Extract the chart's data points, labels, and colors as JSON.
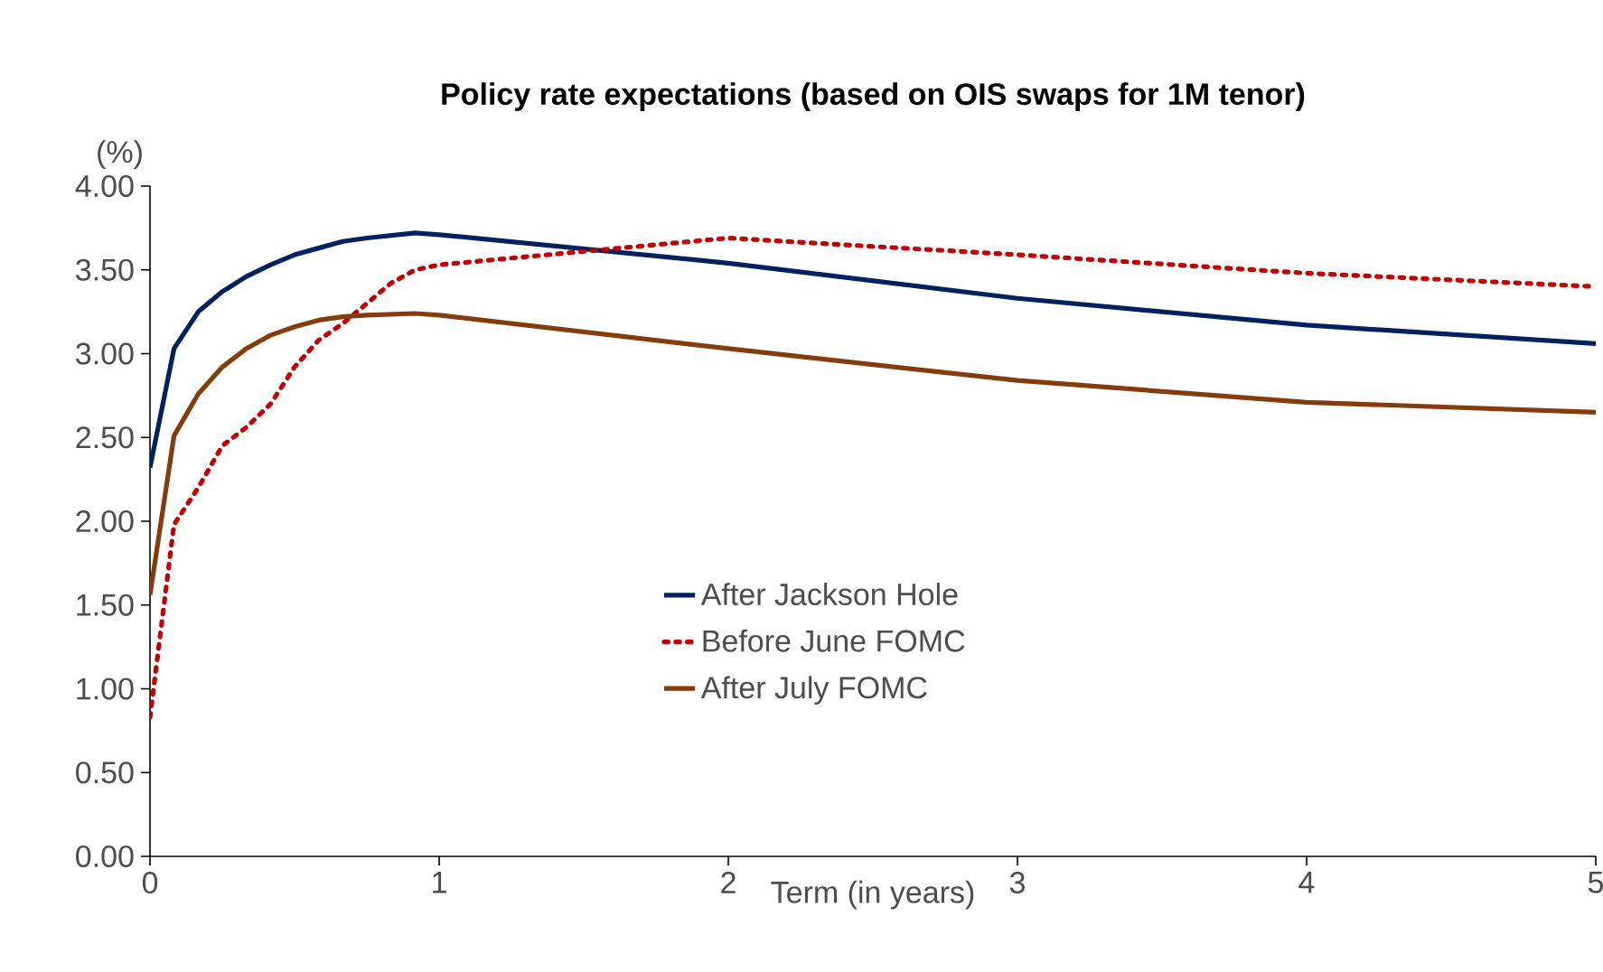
{
  "chart_data": {
    "type": "line",
    "title": "Policy rate expectations (based on OIS swaps for 1M tenor)",
    "xlabel": "Term (in years)",
    "ylabel": "(%)",
    "xlim": [
      0,
      5
    ],
    "xticks": [
      0,
      1,
      2,
      3,
      4,
      5
    ],
    "ylim": [
      0,
      4
    ],
    "yticks": [
      {
        "value": 0,
        "label": "0.00"
      },
      {
        "value": 0.5,
        "label": "0.50"
      },
      {
        "value": 1,
        "label": "1.00"
      },
      {
        "value": 1.5,
        "label": "1.50"
      },
      {
        "value": 2,
        "label": "2.00"
      },
      {
        "value": 2.5,
        "label": "2.50"
      },
      {
        "value": 3,
        "label": "3.00"
      },
      {
        "value": 3.5,
        "label": "3.50"
      },
      {
        "value": 4,
        "label": "4.00"
      }
    ],
    "grid": false,
    "legend": "center",
    "marker": "none",
    "series": [
      {
        "name": "After Jackson Hole",
        "color": "#002060",
        "line_style": "solid",
        "x": [
          0,
          0.083,
          0.167,
          0.25,
          0.333,
          0.417,
          0.5,
          0.583,
          0.667,
          0.75,
          0.917,
          1,
          2,
          3,
          4,
          5
        ],
        "values": [
          2.32,
          3.03,
          3.25,
          3.37,
          3.46,
          3.53,
          3.59,
          3.63,
          3.67,
          3.69,
          3.72,
          3.71,
          3.54,
          3.33,
          3.17,
          3.06
        ]
      },
      {
        "name": "Before June FOMC",
        "color": "#c00000",
        "line_style": "dotted",
        "x": [
          0,
          0.083,
          0.167,
          0.25,
          0.333,
          0.417,
          0.5,
          0.583,
          0.667,
          0.75,
          0.833,
          0.917,
          1,
          2,
          3,
          4,
          5
        ],
        "values": [
          0.83,
          1.98,
          2.2,
          2.45,
          2.56,
          2.7,
          2.92,
          3.08,
          3.18,
          3.3,
          3.42,
          3.5,
          3.53,
          3.69,
          3.59,
          3.48,
          3.4
        ]
      },
      {
        "name": "After July FOMC",
        "color": "#843c0c",
        "line_style": "solid",
        "x": [
          0,
          0.083,
          0.167,
          0.25,
          0.333,
          0.417,
          0.5,
          0.583,
          0.667,
          0.75,
          0.917,
          1,
          2,
          3,
          4,
          5
        ],
        "values": [
          1.56,
          2.51,
          2.76,
          2.92,
          3.03,
          3.11,
          3.16,
          3.2,
          3.22,
          3.23,
          3.24,
          3.23,
          3.03,
          2.84,
          2.71,
          2.65
        ]
      }
    ]
  }
}
